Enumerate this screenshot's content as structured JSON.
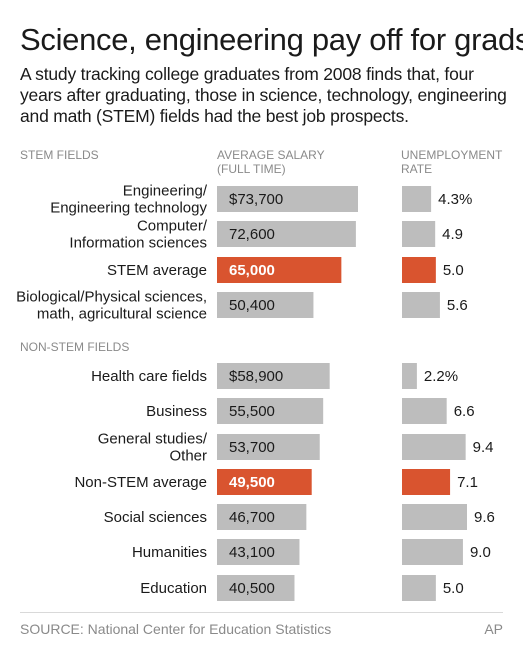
{
  "chart_data": {
    "type": "bar",
    "title": "Science, engineering pay off for grads",
    "subtitle": "A study tracking college graduates from 2008 finds that, four years after graduating, those in science, technology, engineering and math (STEM) fields had the best job prospects.",
    "headers": {
      "stem_fields": "STEM FIELDS",
      "salary": [
        "AVERAGE SALARY",
        "(FULL TIME)"
      ],
      "unemployment": [
        "UNEMPLOYMENT",
        "RATE"
      ],
      "non_stem_fields": "NON-STEM FIELDS"
    },
    "source": "SOURCE: National Center for Education Statistics",
    "credit": "AP",
    "salary_axis_max": 80000,
    "unemployment_axis_max": 10,
    "colors": {
      "bar": "#bdbdbd",
      "highlight": "#d9542f"
    },
    "groups": [
      {
        "name": "STEM",
        "rows": [
          {
            "label": [
              "Engineering/",
              "Engineering technology"
            ],
            "salary": 73700,
            "salary_label": "$73,700",
            "unemployment": 4.3,
            "unemployment_label": "4.3%",
            "highlight": false
          },
          {
            "label": [
              "Computer/",
              "Information sciences"
            ],
            "salary": 72600,
            "salary_label": "72,600",
            "unemployment": 4.9,
            "unemployment_label": "4.9",
            "highlight": false
          },
          {
            "label": [
              "STEM average"
            ],
            "salary": 65000,
            "salary_label": "65,000",
            "unemployment": 5.0,
            "unemployment_label": "5.0",
            "highlight": true
          },
          {
            "label": [
              "Biological/Physical sciences,",
              "math, agricultural science"
            ],
            "salary": 50400,
            "salary_label": "50,400",
            "unemployment": 5.6,
            "unemployment_label": "5.6",
            "highlight": false
          }
        ]
      },
      {
        "name": "Non-STEM",
        "rows": [
          {
            "label": [
              "Health care fields"
            ],
            "salary": 58900,
            "salary_label": "$58,900",
            "unemployment": 2.2,
            "unemployment_label": "2.2%",
            "highlight": false
          },
          {
            "label": [
              "Business"
            ],
            "salary": 55500,
            "salary_label": "55,500",
            "unemployment": 6.6,
            "unemployment_label": "6.6",
            "highlight": false
          },
          {
            "label": [
              "General studies/",
              "Other"
            ],
            "salary": 53700,
            "salary_label": "53,700",
            "unemployment": 9.4,
            "unemployment_label": "9.4",
            "highlight": false
          },
          {
            "label": [
              "Non-STEM average"
            ],
            "salary": 49500,
            "salary_label": "49,500",
            "unemployment": 7.1,
            "unemployment_label": "7.1",
            "highlight": true
          },
          {
            "label": [
              "Social sciences"
            ],
            "salary": 46700,
            "salary_label": "46,700",
            "unemployment": 9.6,
            "unemployment_label": "9.6",
            "highlight": false
          },
          {
            "label": [
              "Humanities"
            ],
            "salary": 43100,
            "salary_label": "43,100",
            "unemployment": 9.0,
            "unemployment_label": "9.0",
            "highlight": false
          },
          {
            "label": [
              "Education"
            ],
            "salary": 40500,
            "salary_label": "40,500",
            "unemployment": 5.0,
            "unemployment_label": "5.0",
            "highlight": false
          }
        ]
      }
    ]
  }
}
